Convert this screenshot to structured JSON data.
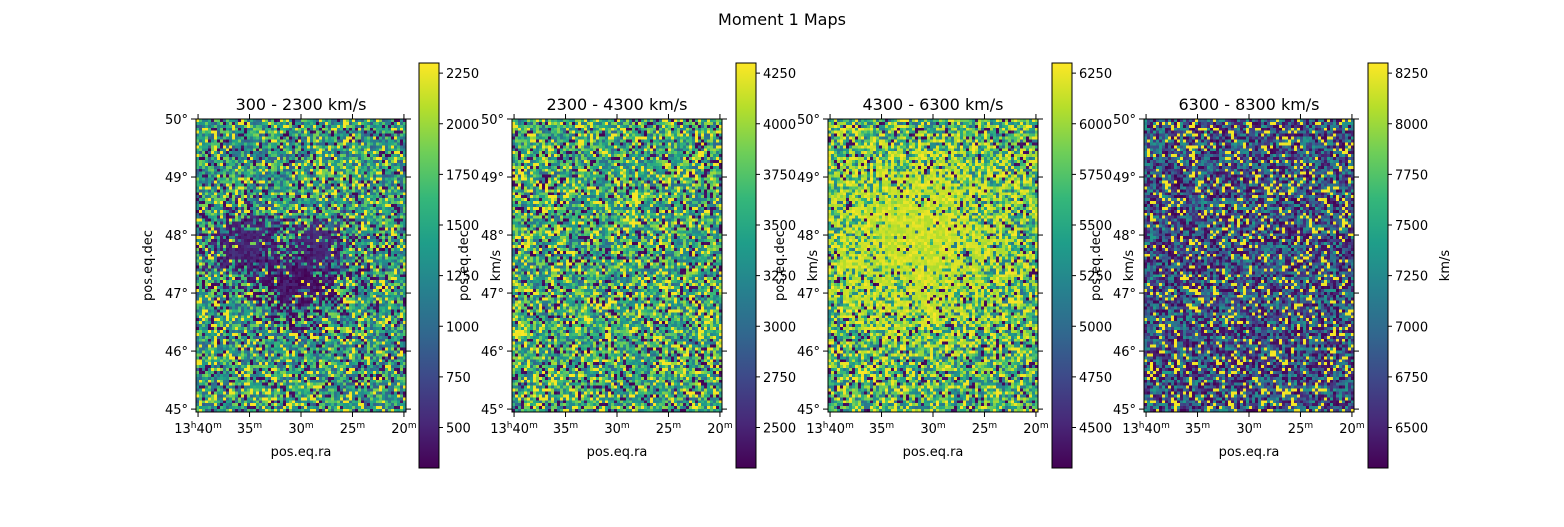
{
  "figure": {
    "title": "Moment 1 Maps"
  },
  "colormap": {
    "name": "viridis",
    "stops": [
      "#440154",
      "#482878",
      "#3e4989",
      "#31688e",
      "#26828e",
      "#1f9e89",
      "#35b779",
      "#6ece58",
      "#b5de2b",
      "#fde725"
    ]
  },
  "chart_data": [
    {
      "type": "heatmap",
      "title": "300 - 2300 km/s",
      "xlabel": "pos.eq.ra",
      "ylabel": "pos.eq.dec",
      "x_ticks": [
        "13h40m",
        "35m",
        "30m",
        "25m",
        "20m"
      ],
      "y_ticks": [
        "45°",
        "46°",
        "47°",
        "48°",
        "49°",
        "50°"
      ],
      "ra_range_minutes": [
        40.2,
        19.8
      ],
      "dec_range_deg": [
        44.95,
        50.0
      ],
      "colorbar": {
        "label": "km/s",
        "range": [
          300,
          2300
        ],
        "ticks": [
          500,
          750,
          1000,
          1250,
          1500,
          1750,
          2000,
          2250
        ]
      },
      "pattern": "noise",
      "mean_fraction": 0.55,
      "features": [
        {
          "ra": 30.5,
          "dec": 47.2,
          "value_fraction": 0.05,
          "size_deg": 0.45
        },
        {
          "ra": 35.5,
          "dec": 47.85,
          "value_fraction": 0.1,
          "size_deg": 0.35
        },
        {
          "ra": 28.5,
          "dec": 47.8,
          "value_fraction": 0.12,
          "size_deg": 0.3
        }
      ]
    },
    {
      "type": "heatmap",
      "title": "2300 - 4300 km/s",
      "xlabel": "pos.eq.ra",
      "ylabel": "pos.eq.dec",
      "x_ticks": [
        "13h40m",
        "35m",
        "30m",
        "25m",
        "20m"
      ],
      "y_ticks": [
        "45°",
        "46°",
        "47°",
        "48°",
        "49°",
        "50°"
      ],
      "ra_range_minutes": [
        40.2,
        19.8
      ],
      "dec_range_deg": [
        44.95,
        50.0
      ],
      "colorbar": {
        "label": "km/s",
        "range": [
          2300,
          4300
        ],
        "ticks": [
          2500,
          2750,
          3000,
          3250,
          3500,
          3750,
          4000,
          4250
        ]
      },
      "pattern": "noise",
      "mean_fraction": 0.6,
      "features": []
    },
    {
      "type": "heatmap",
      "title": "4300 - 6300 km/s",
      "xlabel": "pos.eq.ra",
      "ylabel": "pos.eq.dec",
      "x_ticks": [
        "13h40m",
        "35m",
        "30m",
        "25m",
        "20m"
      ],
      "y_ticks": [
        "45°",
        "46°",
        "47°",
        "48°",
        "49°",
        "50°"
      ],
      "ra_range_minutes": [
        40.2,
        19.8
      ],
      "dec_range_deg": [
        44.95,
        50.0
      ],
      "colorbar": {
        "label": "km/s",
        "range": [
          4300,
          6300
        ],
        "ticks": [
          4500,
          4750,
          5000,
          5250,
          5500,
          5750,
          6000,
          6250
        ]
      },
      "pattern": "noise",
      "mean_fraction": 0.62,
      "features": [
        {
          "ra": 31.5,
          "dec": 47.9,
          "value_fraction": 0.92,
          "size_deg": 1.1
        }
      ]
    },
    {
      "type": "heatmap",
      "title": "6300 - 8300 km/s",
      "xlabel": "pos.eq.ra",
      "ylabel": "pos.eq.dec",
      "x_ticks": [
        "13h40m",
        "35m",
        "30m",
        "25m",
        "20m"
      ],
      "y_ticks": [
        "45°",
        "46°",
        "47°",
        "48°",
        "49°",
        "50°"
      ],
      "ra_range_minutes": [
        40.2,
        19.8
      ],
      "dec_range_deg": [
        44.95,
        50.0
      ],
      "colorbar": {
        "label": "km/s",
        "range": [
          6300,
          8300
        ],
        "ticks": [
          6500,
          6750,
          7000,
          7250,
          7500,
          7750,
          8000,
          8250
        ]
      },
      "pattern": "noise",
      "mean_fraction": 0.28,
      "features": []
    }
  ]
}
